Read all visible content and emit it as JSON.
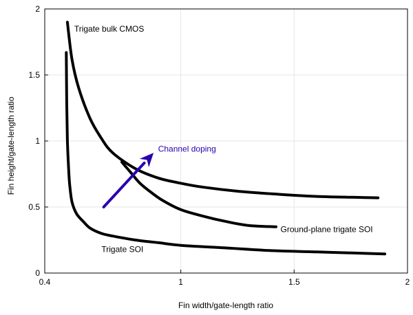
{
  "chart_data": {
    "type": "line",
    "title": "",
    "xlabel": "Fin width/gate-length ratio",
    "ylabel": "Fin height/gate-length ratio",
    "xlim": [
      0.4,
      2
    ],
    "ylim": [
      0,
      2
    ],
    "xticks": [
      0.4,
      1,
      1.5,
      2
    ],
    "xtick_labels": [
      "0.4",
      "1",
      "1.5",
      "2"
    ],
    "yticks": [
      0,
      0.5,
      1,
      1.5,
      2
    ],
    "ytick_labels": [
      "0",
      "0.5",
      "1",
      "1.5",
      "2"
    ],
    "grid": true,
    "legend": "none",
    "colors": {
      "curve": "#000000",
      "arrow": "#2a00b0",
      "grid": "#e6e6e6",
      "axis": "#000000"
    },
    "series": [
      {
        "name": "Trigate bulk CMOS",
        "x": [
          0.5,
          0.52,
          0.55,
          0.6,
          0.65,
          0.7,
          0.8,
          0.9,
          1.0,
          1.1,
          1.25,
          1.4,
          1.6,
          1.87
        ],
        "y": [
          1.9,
          1.62,
          1.4,
          1.17,
          1.02,
          0.91,
          0.79,
          0.72,
          0.68,
          0.65,
          0.62,
          0.6,
          0.58,
          0.57
        ]
      },
      {
        "name": "Ground-plane trigate SOI",
        "x": [
          0.74,
          0.78,
          0.82,
          0.87,
          0.92,
          1.0,
          1.1,
          1.2,
          1.3,
          1.42
        ],
        "y": [
          0.84,
          0.76,
          0.68,
          0.61,
          0.55,
          0.48,
          0.43,
          0.39,
          0.36,
          0.35
        ]
      },
      {
        "name": "Trigate SOI",
        "x": [
          0.495,
          0.497,
          0.5,
          0.505,
          0.51,
          0.52,
          0.54,
          0.57,
          0.6,
          0.65,
          0.7,
          0.8,
          0.9,
          1.0,
          1.2,
          1.4,
          1.6,
          1.8,
          1.9
        ],
        "y": [
          1.67,
          1.3,
          1.0,
          0.8,
          0.67,
          0.54,
          0.45,
          0.39,
          0.34,
          0.3,
          0.28,
          0.25,
          0.23,
          0.21,
          0.19,
          0.17,
          0.16,
          0.15,
          0.145
        ]
      }
    ],
    "series_label_anchor": [
      {
        "x": 0.53,
        "y": 1.85
      },
      {
        "x": 1.44,
        "y": 0.33
      },
      {
        "x": 0.65,
        "y": 0.18
      }
    ],
    "annotations": [
      {
        "text": "Channel doping",
        "type": "arrow",
        "from": {
          "x": 0.66,
          "y": 0.5
        },
        "to": {
          "x": 0.88,
          "y": 0.91
        },
        "label_at": {
          "x": 0.9,
          "y": 0.94
        }
      }
    ]
  }
}
